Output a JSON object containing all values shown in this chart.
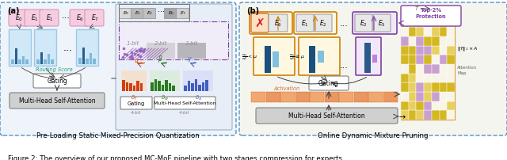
{
  "figure_width": 6.4,
  "figure_height": 2.03,
  "dpi": 100,
  "bg_color": "#ffffff",
  "caption": "Figure 2: The overview of our proposed MC-MoE pipeline with two stages compression for experts",
  "label_a": "(a)",
  "label_b": "(b)",
  "subtitle_left": "Pre-Loading Static Mixed-Precision Quantization",
  "subtitle_right": "Online Dynamic Mixture Pruning",
  "colors": {
    "pink_light": "#f5cce0",
    "pink_border": "#d898b8",
    "blue_panel": "#9ec8e8",
    "blue_bar_dark": "#2a6090",
    "blue_bar_light": "#80b8d8",
    "blue_dashed": "#5090c8",
    "orange_bar": "#d04010",
    "green_bar": "#2a7a20",
    "blue_bar2": "#4060c0",
    "purple_dot": "#9060c0",
    "gray_light": "#d0d0d0",
    "gray_mid": "#a0a0a0",
    "gray_box": "#e8e8e8",
    "teal": "#20a080",
    "gold": "#e0a000",
    "gold_border": "#d08000",
    "purple_border": "#8040a0",
    "orange_act": "#f0a060",
    "orange_act_border": "#d07030",
    "attn_yellow": "#e8d070",
    "attn_purple": "#c080d0",
    "red_x": "#cc2020",
    "panel_a_bg": "#eef4fa",
    "panel_b_bg": "#f5f5f0",
    "quant_bg": "#e8eef8"
  }
}
